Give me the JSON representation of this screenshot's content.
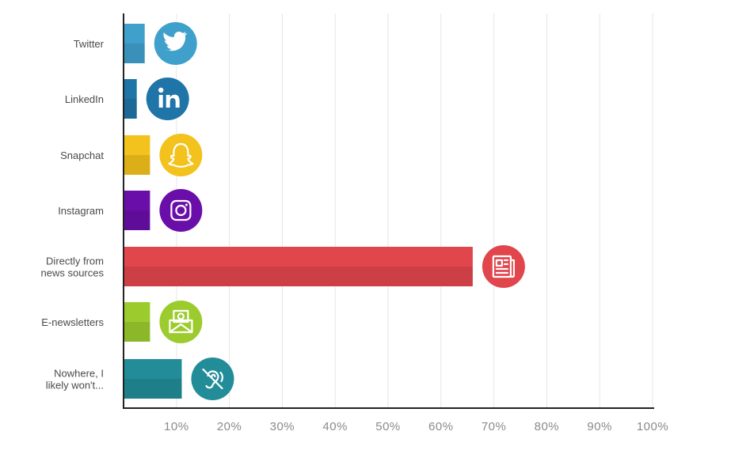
{
  "chart_data": {
    "type": "bar",
    "orientation": "horizontal",
    "categories": [
      [
        "Twitter"
      ],
      [
        "LinkedIn"
      ],
      [
        "Snapchat"
      ],
      [
        "Instagram"
      ],
      [
        "Directly from",
        "news sources"
      ],
      [
        "E-newsletters"
      ],
      [
        "Nowhere, I",
        "likely won't..."
      ]
    ],
    "values": [
      4,
      2.5,
      5,
      5,
      66,
      5,
      11
    ],
    "colors": [
      "#3fa0cc",
      "#1f74a8",
      "#f4c21c",
      "#6a0ea9",
      "#e2464d",
      "#9ccb2e",
      "#228d98"
    ],
    "icons": [
      "twitter-icon",
      "linkedin-icon",
      "snapchat-icon",
      "instagram-icon",
      "newspaper-icon",
      "envelope-icon",
      "no-listening-icon"
    ],
    "x_ticks": [
      "10%",
      "20%",
      "30%",
      "40%",
      "50%",
      "60%",
      "70%",
      "80%",
      "90%",
      "100%"
    ],
    "xlim": [
      0,
      100
    ],
    "grid": true,
    "title": "",
    "xlabel": "",
    "ylabel": ""
  }
}
